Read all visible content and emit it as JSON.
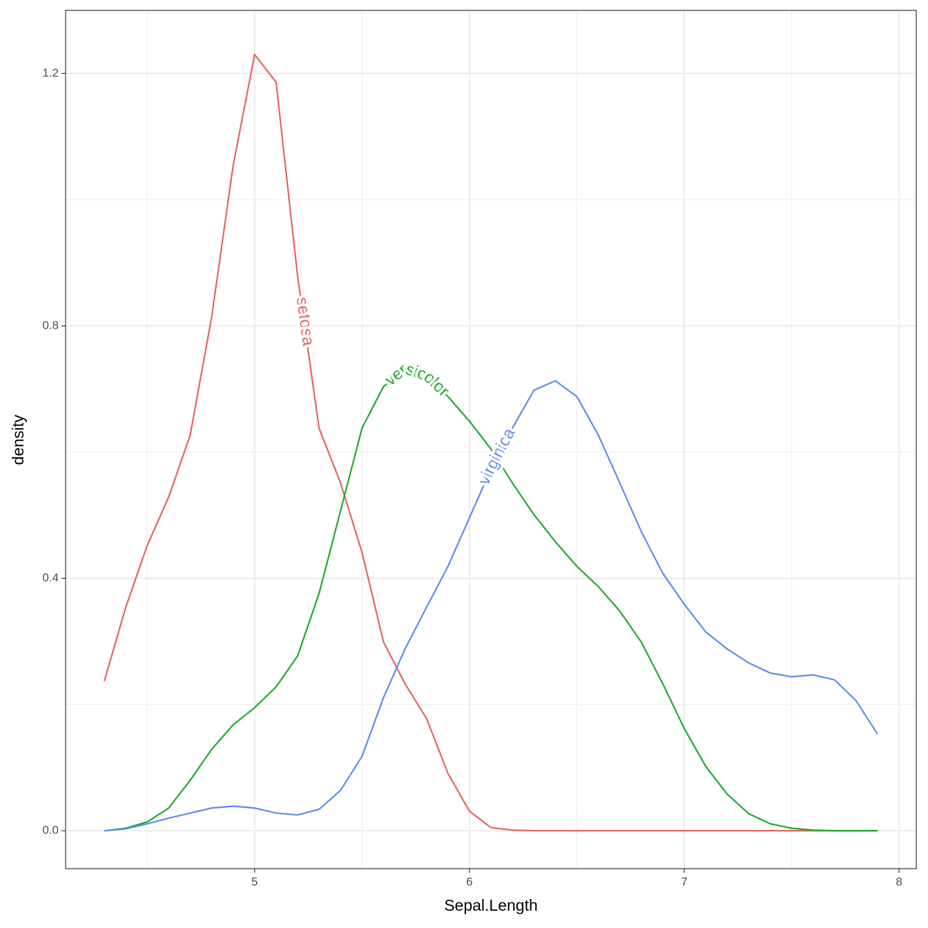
{
  "chart_data": {
    "type": "line",
    "x_label": "Sepal.Length",
    "y_label": "density",
    "x": [
      4.3,
      4.4,
      4.5,
      4.6,
      4.7,
      4.8,
      4.9,
      5.0,
      5.1,
      5.2,
      5.3,
      5.4,
      5.5,
      5.6,
      5.7,
      5.8,
      5.9,
      6.0,
      6.1,
      6.2,
      6.3,
      6.4,
      6.5,
      6.6,
      6.7,
      6.8,
      6.9,
      7.0,
      7.1,
      7.2,
      7.3,
      7.4,
      7.5,
      7.6,
      7.7,
      7.8,
      7.9
    ],
    "series": [
      {
        "name": "setosa",
        "color": "#e8625a",
        "values": [
          0.237,
          0.354,
          0.452,
          0.529,
          0.627,
          0.814,
          1.054,
          1.23,
          1.186,
          0.879,
          0.638,
          0.551,
          0.441,
          0.299,
          0.233,
          0.178,
          0.091,
          0.031,
          0.005,
          0.001,
          0,
          0,
          0,
          0,
          0,
          0,
          0,
          0,
          0,
          0,
          0,
          0,
          0,
          0,
          0,
          0,
          0
        ]
      },
      {
        "name": "versicolor",
        "color": "#1aaa2a",
        "values": [
          0,
          0.004,
          0.014,
          0.036,
          0.08,
          0.129,
          0.168,
          0.195,
          0.228,
          0.277,
          0.376,
          0.507,
          0.638,
          0.704,
          0.731,
          0.72,
          0.688,
          0.649,
          0.605,
          0.551,
          0.501,
          0.458,
          0.419,
          0.387,
          0.348,
          0.299,
          0.233,
          0.162,
          0.102,
          0.058,
          0.027,
          0.011,
          0.004,
          0.001,
          0,
          0,
          0
        ]
      },
      {
        "name": "virginica",
        "color": "#5b8bf0",
        "values": [
          0,
          0.003,
          0.011,
          0.02,
          0.028,
          0.036,
          0.039,
          0.036,
          0.028,
          0.025,
          0.034,
          0.064,
          0.118,
          0.211,
          0.288,
          0.354,
          0.419,
          0.496,
          0.573,
          0.638,
          0.698,
          0.713,
          0.688,
          0.627,
          0.551,
          0.474,
          0.408,
          0.359,
          0.315,
          0.288,
          0.266,
          0.25,
          0.244,
          0.247,
          0.239,
          0.206,
          0.153
        ]
      }
    ],
    "xlim": [
      4.12,
      8.08
    ],
    "ylim": [
      -0.06,
      1.3
    ],
    "xticks": [
      5,
      6,
      7,
      8
    ],
    "yticks": [
      {
        "value": 0,
        "label": "0.0"
      },
      {
        "value": 0.4,
        "label": "0.4"
      },
      {
        "value": 0.8,
        "label": "0.8"
      },
      {
        "value": 1.2,
        "label": "1.2"
      }
    ],
    "x_minor_grid": [
      4.5,
      5.5,
      6.5,
      7.5
    ],
    "y_minor_grid": [
      0.2,
      0.6,
      1.0
    ],
    "grid": true
  }
}
